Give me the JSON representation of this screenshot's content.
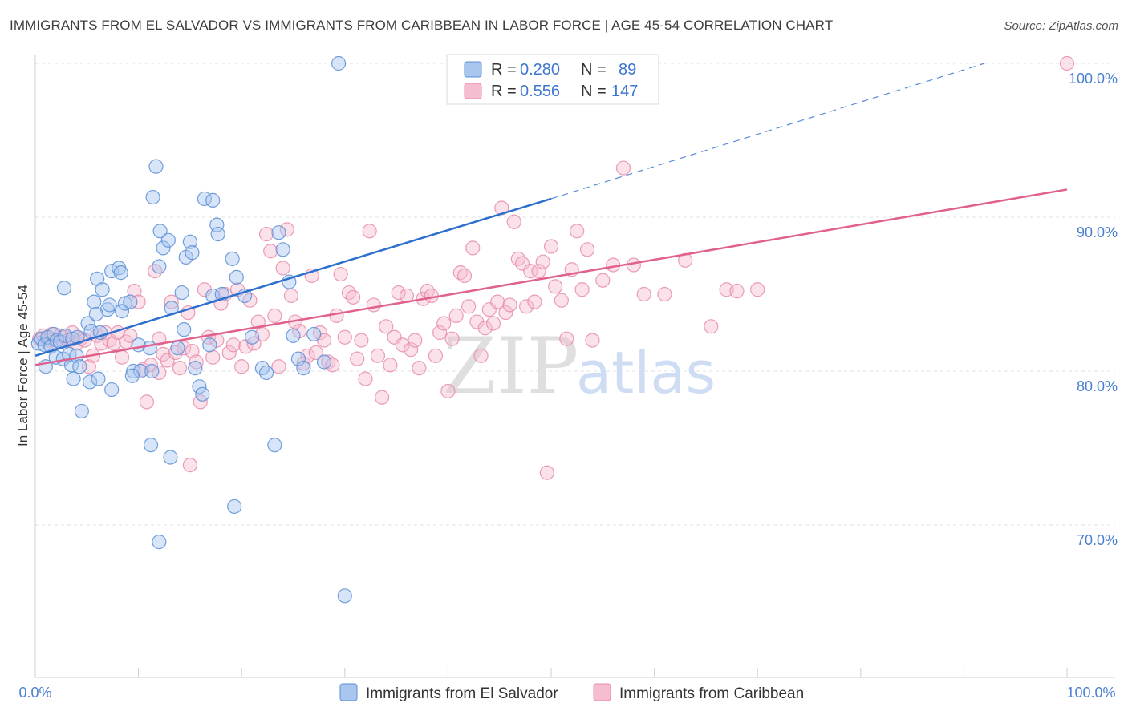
{
  "title": "IMMIGRANTS FROM EL SALVADOR VS IMMIGRANTS FROM CARIBBEAN IN LABOR FORCE | AGE 45-54 CORRELATION CHART",
  "source": "Source: ZipAtlas.com",
  "watermark": {
    "zip": "ZIP",
    "atlas": "atlas"
  },
  "colors": {
    "blue_fill": "#a9c6ef",
    "blue_stroke": "#5b8fd6",
    "blue_line": "#2d6fcf",
    "pink_fill": "#f6bcd0",
    "pink_stroke": "#e68cac",
    "pink_line": "#e0608e",
    "grid": "#e0e0e0",
    "tick_text": "#4a7fd0"
  },
  "legend": {
    "r_label": "R =",
    "n_label": "N =",
    "series": [
      {
        "r": "0.280",
        "n": "89"
      },
      {
        "r": "0.556",
        "n": "147"
      }
    ]
  },
  "chart_data": {
    "type": "scatter",
    "title": "IMMIGRANTS FROM EL SALVADOR VS IMMIGRANTS FROM CARIBBEAN IN LABOR FORCE | AGE 45-54 CORRELATION CHART",
    "xlabel": "",
    "ylabel": "In Labor Force | Age 45-54",
    "xlim": [
      0,
      100
    ],
    "ylim": [
      61.5,
      101.5
    ],
    "x_tick_labels": [
      "0.0%",
      "100.0%"
    ],
    "y_ticks": [
      70,
      80,
      90,
      100
    ],
    "y_tick_labels": [
      "70.0%",
      "80.0%",
      "90.0%",
      "100.0%"
    ],
    "grid": true,
    "legend_position": "top-center",
    "series": [
      {
        "name": "Immigrants from El Salvador",
        "color": "blue",
        "r": 0.28,
        "n": 89,
        "trend": {
          "x0": 0,
          "y0": 81.0,
          "x1": 50,
          "y1": 91.2,
          "dashed_to_x": 92,
          "dashed_to_y": 100
        },
        "points": [
          [
            0.3,
            81.8
          ],
          [
            0.6,
            82.1
          ],
          [
            0.9,
            81.7
          ],
          [
            1.2,
            82.2
          ],
          [
            1.5,
            81.6
          ],
          [
            1.8,
            82.4
          ],
          [
            2.1,
            82.0
          ],
          [
            2.4,
            81.9
          ],
          [
            1.0,
            80.3
          ],
          [
            2.0,
            80.9
          ],
          [
            2.7,
            80.8
          ],
          [
            3.3,
            81.1
          ],
          [
            3.5,
            80.4
          ],
          [
            4.0,
            81.0
          ],
          [
            4.3,
            80.3
          ],
          [
            2.9,
            82.3
          ],
          [
            3.6,
            82.1
          ],
          [
            4.1,
            82.2
          ],
          [
            5.1,
            83.1
          ],
          [
            5.4,
            82.6
          ],
          [
            6.3,
            82.5
          ],
          [
            7.0,
            84.0
          ],
          [
            7.2,
            84.3
          ],
          [
            8.4,
            83.9
          ],
          [
            8.7,
            84.4
          ],
          [
            9.2,
            84.5
          ],
          [
            5.7,
            84.5
          ],
          [
            6.0,
            86.0
          ],
          [
            6.5,
            85.3
          ],
          [
            7.4,
            86.5
          ],
          [
            8.1,
            86.7
          ],
          [
            8.3,
            86.4
          ],
          [
            2.8,
            85.4
          ],
          [
            5.9,
            83.7
          ],
          [
            3.7,
            79.5
          ],
          [
            5.3,
            79.3
          ],
          [
            6.1,
            79.5
          ],
          [
            7.4,
            78.8
          ],
          [
            9.5,
            80.0
          ],
          [
            10.0,
            81.7
          ],
          [
            10.2,
            80.0
          ],
          [
            11.1,
            81.5
          ],
          [
            9.4,
            79.7
          ],
          [
            11.2,
            75.2
          ],
          [
            11.7,
            93.3
          ],
          [
            11.4,
            91.3
          ],
          [
            11.3,
            80.0
          ],
          [
            12.1,
            89.1
          ],
          [
            12.0,
            86.8
          ],
          [
            12.4,
            88.0
          ],
          [
            12.9,
            88.5
          ],
          [
            13.2,
            84.1
          ],
          [
            13.1,
            74.4
          ],
          [
            13.8,
            81.5
          ],
          [
            14.2,
            85.1
          ],
          [
            14.6,
            87.4
          ],
          [
            14.4,
            82.7
          ],
          [
            15.0,
            88.4
          ],
          [
            15.2,
            87.7
          ],
          [
            15.5,
            80.2
          ],
          [
            15.9,
            79.0
          ],
          [
            16.2,
            78.5
          ],
          [
            16.4,
            91.2
          ],
          [
            16.9,
            81.7
          ],
          [
            17.2,
            91.1
          ],
          [
            17.6,
            89.5
          ],
          [
            17.7,
            88.9
          ],
          [
            17.2,
            84.9
          ],
          [
            18.1,
            85.0
          ],
          [
            19.1,
            87.3
          ],
          [
            19.5,
            86.1
          ],
          [
            19.3,
            71.2
          ],
          [
            20.3,
            84.9
          ],
          [
            21.0,
            82.2
          ],
          [
            22.0,
            80.2
          ],
          [
            22.4,
            79.9
          ],
          [
            23.2,
            75.2
          ],
          [
            23.6,
            89.0
          ],
          [
            24.0,
            87.9
          ],
          [
            24.6,
            85.8
          ],
          [
            25.5,
            80.8
          ],
          [
            26.0,
            80.2
          ],
          [
            27.0,
            82.4
          ],
          [
            28.0,
            80.6
          ],
          [
            25.0,
            82.3
          ],
          [
            29.4,
            100.0
          ],
          [
            30.0,
            65.4
          ],
          [
            12.0,
            68.9
          ],
          [
            4.5,
            77.4
          ]
        ]
      },
      {
        "name": "Immigrants from Caribbean",
        "color": "pink",
        "r": 0.556,
        "n": 147,
        "trend": {
          "x0": 0,
          "y0": 80.4,
          "x1": 100,
          "y1": 91.8
        },
        "points": [
          [
            0.4,
            82.1
          ],
          [
            0.8,
            82.3
          ],
          [
            1.2,
            82.0
          ],
          [
            1.6,
            82.4
          ],
          [
            2.0,
            81.9
          ],
          [
            2.4,
            82.3
          ],
          [
            2.8,
            82.2
          ],
          [
            3.2,
            82.0
          ],
          [
            3.6,
            82.5
          ],
          [
            4.0,
            81.8
          ],
          [
            4.4,
            82.1
          ],
          [
            4.8,
            82.0
          ],
          [
            5.2,
            80.3
          ],
          [
            5.6,
            81.0
          ],
          [
            6.0,
            82.3
          ],
          [
            6.4,
            81.8
          ],
          [
            6.8,
            82.5
          ],
          [
            7.2,
            82.0
          ],
          [
            7.6,
            81.8
          ],
          [
            8.0,
            82.5
          ],
          [
            8.4,
            80.9
          ],
          [
            8.8,
            81.9
          ],
          [
            9.2,
            82.3
          ],
          [
            9.6,
            85.2
          ],
          [
            10.0,
            84.5
          ],
          [
            10.4,
            80.1
          ],
          [
            10.8,
            78.0
          ],
          [
            11.2,
            80.4
          ],
          [
            11.6,
            86.5
          ],
          [
            12.0,
            79.9
          ],
          [
            12.4,
            81.1
          ],
          [
            12.8,
            80.7
          ],
          [
            13.2,
            84.5
          ],
          [
            13.6,
            81.2
          ],
          [
            14.0,
            80.2
          ],
          [
            14.4,
            81.5
          ],
          [
            14.8,
            83.8
          ],
          [
            15.2,
            81.3
          ],
          [
            15.6,
            80.6
          ],
          [
            16.0,
            78.0
          ],
          [
            16.4,
            85.3
          ],
          [
            16.8,
            82.2
          ],
          [
            17.2,
            80.9
          ],
          [
            17.6,
            82.0
          ],
          [
            18.0,
            84.4
          ],
          [
            18.4,
            85.0
          ],
          [
            18.8,
            81.2
          ],
          [
            19.2,
            81.7
          ],
          [
            19.6,
            85.3
          ],
          [
            20.0,
            80.3
          ],
          [
            20.4,
            81.6
          ],
          [
            20.8,
            84.6
          ],
          [
            21.2,
            81.8
          ],
          [
            21.6,
            83.2
          ],
          [
            22.0,
            82.4
          ],
          [
            22.4,
            88.9
          ],
          [
            22.8,
            87.8
          ],
          [
            23.2,
            83.6
          ],
          [
            23.6,
            80.3
          ],
          [
            24.0,
            86.7
          ],
          [
            24.4,
            89.2
          ],
          [
            24.8,
            84.9
          ],
          [
            25.2,
            83.2
          ],
          [
            25.6,
            82.6
          ],
          [
            26.0,
            80.5
          ],
          [
            26.4,
            81.0
          ],
          [
            26.8,
            86.2
          ],
          [
            27.2,
            81.2
          ],
          [
            27.6,
            82.5
          ],
          [
            28.0,
            82.0
          ],
          [
            28.4,
            80.6
          ],
          [
            28.8,
            80.4
          ],
          [
            29.2,
            83.6
          ],
          [
            29.6,
            86.3
          ],
          [
            30.0,
            82.2
          ],
          [
            30.4,
            85.1
          ],
          [
            30.8,
            84.8
          ],
          [
            31.2,
            80.8
          ],
          [
            31.6,
            82.0
          ],
          [
            32.0,
            79.5
          ],
          [
            32.4,
            89.1
          ],
          [
            32.8,
            84.3
          ],
          [
            33.2,
            81.0
          ],
          [
            33.6,
            78.3
          ],
          [
            34.0,
            82.9
          ],
          [
            34.4,
            80.4
          ],
          [
            34.8,
            82.2
          ],
          [
            35.2,
            85.1
          ],
          [
            35.6,
            81.7
          ],
          [
            36.0,
            84.9
          ],
          [
            36.4,
            81.4
          ],
          [
            36.8,
            82.0
          ],
          [
            37.2,
            80.2
          ],
          [
            37.6,
            84.7
          ],
          [
            38.0,
            85.2
          ],
          [
            38.4,
            84.9
          ],
          [
            38.8,
            81.0
          ],
          [
            39.2,
            82.5
          ],
          [
            39.6,
            83.1
          ],
          [
            40.0,
            78.7
          ],
          [
            40.4,
            82.1
          ],
          [
            40.8,
            83.6
          ],
          [
            41.2,
            86.4
          ],
          [
            41.6,
            86.2
          ],
          [
            42.0,
            84.2
          ],
          [
            42.4,
            88.0
          ],
          [
            42.8,
            83.2
          ],
          [
            43.2,
            81.0
          ],
          [
            43.6,
            82.8
          ],
          [
            44.0,
            84.0
          ],
          [
            44.4,
            83.1
          ],
          [
            44.8,
            84.5
          ],
          [
            45.2,
            90.6
          ],
          [
            45.6,
            83.8
          ],
          [
            46.0,
            84.3
          ],
          [
            46.4,
            89.7
          ],
          [
            46.8,
            87.3
          ],
          [
            47.2,
            87.0
          ],
          [
            47.6,
            84.2
          ],
          [
            48.0,
            86.5
          ],
          [
            48.4,
            84.5
          ],
          [
            48.8,
            86.5
          ],
          [
            49.2,
            87.1
          ],
          [
            49.6,
            73.4
          ],
          [
            50.0,
            88.1
          ],
          [
            50.4,
            85.5
          ],
          [
            51.0,
            84.6
          ],
          [
            51.5,
            82.1
          ],
          [
            52.0,
            86.6
          ],
          [
            52.5,
            89.1
          ],
          [
            53.0,
            85.3
          ],
          [
            53.5,
            87.9
          ],
          [
            54.0,
            82.0
          ],
          [
            55.0,
            85.9
          ],
          [
            56.0,
            86.9
          ],
          [
            57.0,
            93.2
          ],
          [
            58.0,
            86.9
          ],
          [
            59.0,
            85.0
          ],
          [
            61.0,
            85.0
          ],
          [
            63.0,
            87.2
          ],
          [
            65.5,
            82.9
          ],
          [
            67.0,
            85.3
          ],
          [
            68.0,
            85.2
          ],
          [
            70.0,
            85.3
          ],
          [
            15.0,
            73.9
          ],
          [
            12.0,
            82.1
          ],
          [
            100.0,
            100.0
          ]
        ]
      }
    ]
  },
  "bottom_legend": [
    {
      "label": "Immigrants from El Salvador"
    },
    {
      "label": "Immigrants from Caribbean"
    }
  ]
}
